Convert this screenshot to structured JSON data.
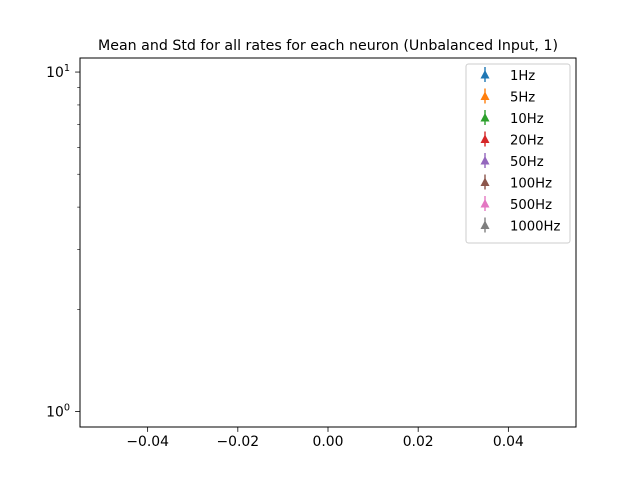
{
  "chart_data": {
    "type": "scatter",
    "title": "Mean and Std for all rates for each neuron (Unbalanced Input, 1)",
    "xlabel": "",
    "ylabel": "",
    "xlim": [
      -0.055,
      0.055
    ],
    "ylim": [
      0.9,
      11
    ],
    "yscale": "log",
    "grid": false,
    "legend_position": "top-right",
    "x_ticks": [
      {
        "value": -0.04,
        "label": "−0.04"
      },
      {
        "value": -0.02,
        "label": "−0.02"
      },
      {
        "value": 0.0,
        "label": "0.00"
      },
      {
        "value": 0.02,
        "label": "0.02"
      },
      {
        "value": 0.04,
        "label": "0.04"
      }
    ],
    "y_major_ticks": [
      {
        "value": 1,
        "base": "10",
        "exp": "0"
      },
      {
        "value": 10,
        "base": "10",
        "exp": "1"
      }
    ],
    "y_minor_ticks": [
      2,
      3,
      4,
      5,
      6,
      7,
      8,
      9
    ],
    "series": [
      {
        "name": "1Hz",
        "color": "#1f77b4",
        "marker": "triangle-up",
        "points": []
      },
      {
        "name": "5Hz",
        "color": "#ff7f0e",
        "marker": "triangle-up",
        "points": []
      },
      {
        "name": "10Hz",
        "color": "#2ca02c",
        "marker": "triangle-up",
        "points": []
      },
      {
        "name": "20Hz",
        "color": "#d62728",
        "marker": "triangle-up",
        "points": []
      },
      {
        "name": "50Hz",
        "color": "#9467bd",
        "marker": "triangle-up",
        "points": []
      },
      {
        "name": "100Hz",
        "color": "#8c564b",
        "marker": "triangle-up",
        "points": []
      },
      {
        "name": "500Hz",
        "color": "#e377c2",
        "marker": "triangle-up",
        "points": []
      },
      {
        "name": "1000Hz",
        "color": "#7f7f7f",
        "marker": "triangle-up",
        "points": []
      }
    ]
  }
}
